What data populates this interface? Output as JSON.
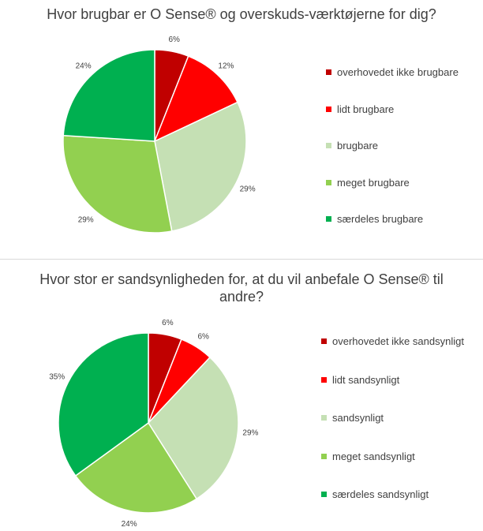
{
  "chart_data": [
    {
      "type": "pie",
      "title": "Hvor brugbar er O Sense® og overskuds-værktøjerne for dig?",
      "categories": [
        "overhovedet ikke brugbare",
        "lidt brugbare",
        "brugbare",
        "meget brugbare",
        "særdeles brugbare"
      ],
      "values": [
        6,
        12,
        29,
        29,
        24
      ],
      "labels": [
        "6%",
        "12%",
        "29%",
        "29%",
        "24%"
      ],
      "colors": [
        "#c00000",
        "#ff0000",
        "#c5e0b4",
        "#92d050",
        "#00b050"
      ],
      "legend": "right"
    },
    {
      "type": "pie",
      "title": "Hvor stor er sandsynligheden for, at du vil anbefale O Sense® til andre?",
      "categories": [
        "overhovedet ikke sandsynligt",
        "lidt sandsynligt",
        "sandsynligt",
        "meget sandsynligt",
        "særdeles sandsynligt"
      ],
      "values": [
        6,
        6,
        29,
        24,
        35
      ],
      "labels": [
        "6%",
        "6%",
        "29%",
        "24%",
        "35%"
      ],
      "colors": [
        "#c00000",
        "#ff0000",
        "#c5e0b4",
        "#92d050",
        "#00b050"
      ],
      "legend": "right"
    }
  ]
}
